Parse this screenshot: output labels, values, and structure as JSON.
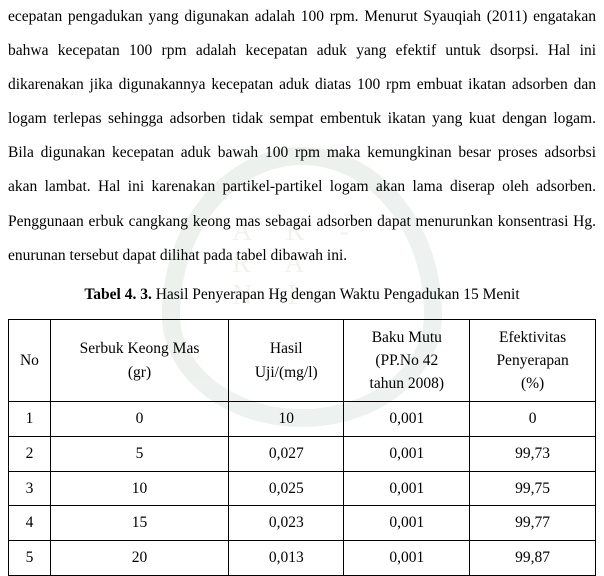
{
  "paragraph": "ecepatan pengadukan yang digunakan adalah 100 rpm. Menurut Syauqiah (2011) engatakan bahwa kecepatan 100 rpm adalah kecepatan aduk yang efektif untuk dsorpsi. Hal ini dikarenakan jika digunakannya kecepatan aduk diatas 100 rpm embuat ikatan adsorben dan logam terlepas sehingga adsorben tidak sempat embentuk ikatan yang kuat dengan logam. Bila digunakan kecepatan aduk bawah 100 rpm maka kemungkinan besar proses adsorbsi akan lambat. Hal ini karenakan partikel-partikel logam akan lama diserap oleh adsorben. Penggunaan erbuk cangkang keong mas sebagai adsorben dapat menurunkan konsentrasi Hg. enurunan tersebut dapat dilihat pada tabel dibawah ini.",
  "tableTitle": {
    "bold": "Tabel 4. 3.",
    "rest": " Hasil Penyerapan Hg dengan Waktu Pengadukan 15 Menit"
  },
  "columns": {
    "no": "No",
    "serbuk": "Serbuk Keong Mas\n(gr)",
    "hasil": "Hasil\nUji/(mg/l)",
    "baku": "Baku Mutu\n(PP.No 42\ntahun 2008)",
    "efek": "Efektivitas\nPenyerapan\n(%)"
  },
  "rows": [
    {
      "no": "1",
      "serbuk": "0",
      "hasil": "10",
      "baku": "0,001",
      "efek": "0"
    },
    {
      "no": "2",
      "serbuk": "5",
      "hasil": "0,027",
      "baku": "0,001",
      "efek": "99,73"
    },
    {
      "no": "3",
      "serbuk": "10",
      "hasil": "0,025",
      "baku": "0,001",
      "efek": "99,75"
    },
    {
      "no": "4",
      "serbuk": "15",
      "hasil": "0,023",
      "baku": "0,001",
      "efek": "99,77"
    },
    {
      "no": "5",
      "serbuk": "20",
      "hasil": "0,013",
      "baku": "0,001",
      "efek": "99,87"
    }
  ],
  "watermarkText": "A R - R A N I",
  "styles": {
    "backgroundColor": "#ffffff",
    "textColor": "#000000",
    "borderColor": "#000000",
    "watermarkGreen": "#1a5c3a",
    "watermarkGold": "#7a5a2a",
    "fontSize": 15.5,
    "lineHeight": 2.2
  }
}
